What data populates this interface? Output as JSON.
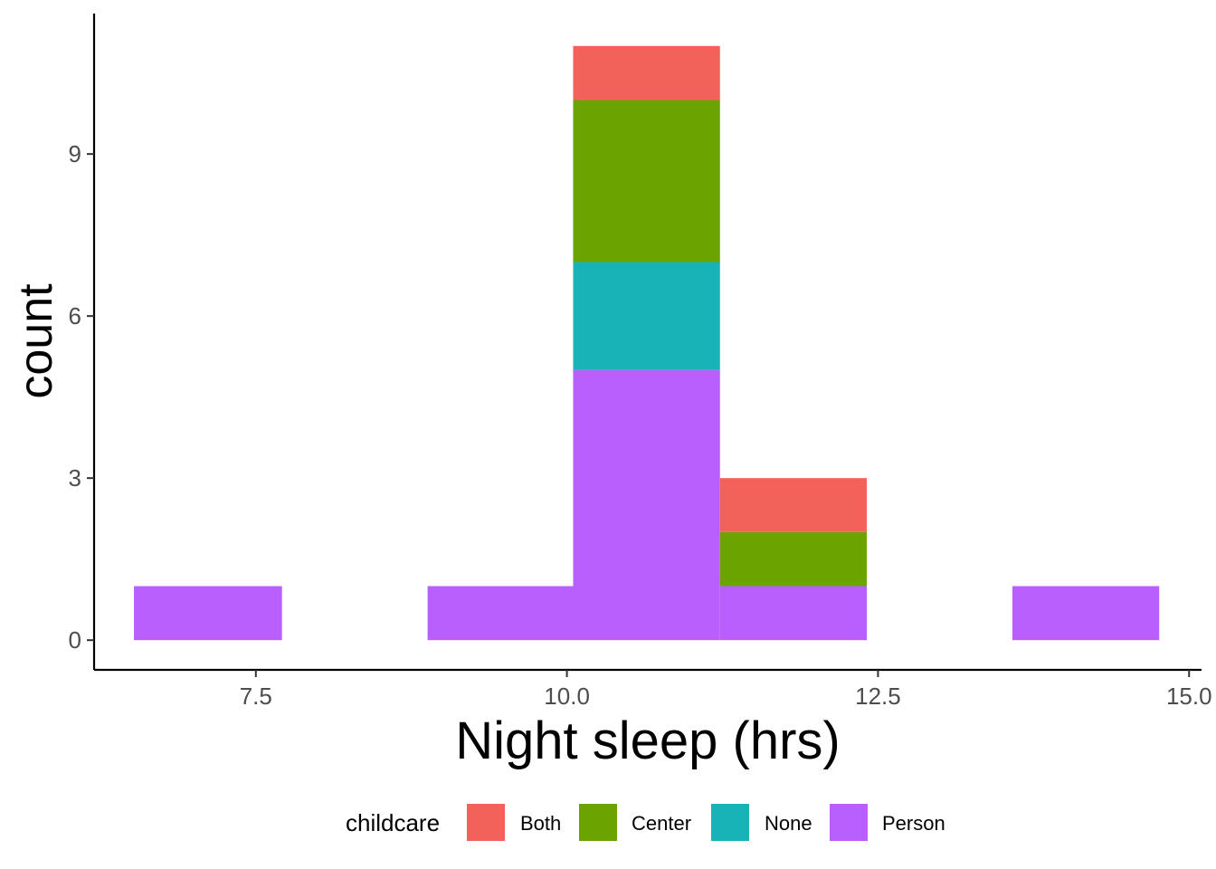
{
  "chart_data": {
    "type": "bar",
    "stacked": true,
    "xlabel": "Night sleep (hrs)",
    "ylabel": "count",
    "xlim": [
      6.2,
      15.1
    ],
    "ylim": [
      -0.55,
      11.6
    ],
    "x_ticks": [
      {
        "value": 7.5,
        "label": "7.5"
      },
      {
        "value": 10.0,
        "label": "10.0"
      },
      {
        "value": 12.5,
        "label": "12.5"
      },
      {
        "value": 15.0,
        "label": "15.0"
      }
    ],
    "y_ticks": [
      {
        "value": 0,
        "label": "0"
      },
      {
        "value": 3,
        "label": "3"
      },
      {
        "value": 6,
        "label": "6"
      },
      {
        "value": 9,
        "label": "9"
      }
    ],
    "bins": [
      {
        "start": 6.52,
        "end": 7.71
      },
      {
        "start": 7.71,
        "end": 8.88
      },
      {
        "start": 8.88,
        "end": 10.05
      },
      {
        "start": 10.05,
        "end": 11.23
      },
      {
        "start": 11.23,
        "end": 12.41
      },
      {
        "start": 12.41,
        "end": 13.58
      },
      {
        "start": 13.58,
        "end": 14.76
      }
    ],
    "series": [
      {
        "name": "Person",
        "color": "#B95FFE",
        "values": [
          1,
          0,
          1,
          5,
          1,
          0,
          1
        ]
      },
      {
        "name": "None",
        "color": "#18B3B7",
        "values": [
          0,
          0,
          0,
          2,
          0,
          0,
          0
        ]
      },
      {
        "name": "Center",
        "color": "#6BA401",
        "values": [
          0,
          0,
          0,
          3,
          1,
          0,
          0
        ]
      },
      {
        "name": "Both",
        "color": "#F3615B",
        "values": [
          0,
          0,
          0,
          1,
          1,
          0,
          0
        ]
      }
    ],
    "legend": {
      "title": "childcare",
      "position": "bottom",
      "items": [
        {
          "label": "Both",
          "color": "#F3615B"
        },
        {
          "label": "Center",
          "color": "#6BA401"
        },
        {
          "label": "None",
          "color": "#18B3B7"
        },
        {
          "label": "Person",
          "color": "#B95FFE"
        }
      ]
    },
    "grid": false
  }
}
